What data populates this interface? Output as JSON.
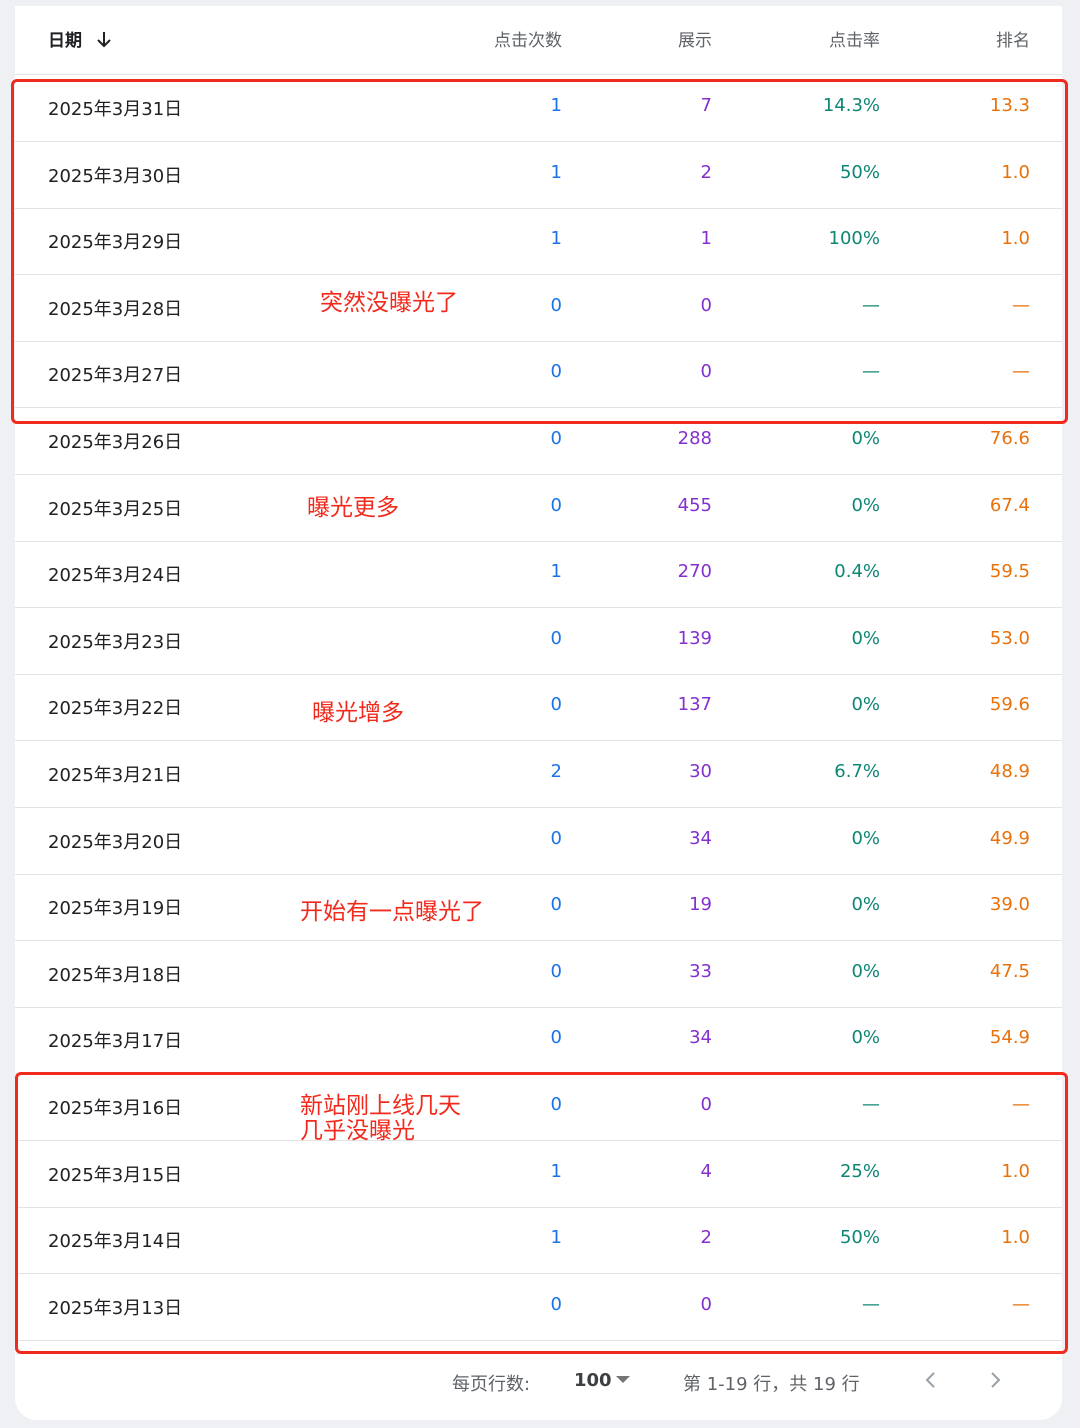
{
  "header": {
    "date": "日期",
    "clicks": "点击次数",
    "impressions": "展示",
    "ctr": "点击率",
    "position": "排名",
    "sort_icon": "arrow-down-icon"
  },
  "rows": [
    {
      "date": "2025年3月31日",
      "clicks": "1",
      "impressions": "7",
      "ctr": "14.3%",
      "position": "13.3"
    },
    {
      "date": "2025年3月30日",
      "clicks": "1",
      "impressions": "2",
      "ctr": "50%",
      "position": "1.0"
    },
    {
      "date": "2025年3月29日",
      "clicks": "1",
      "impressions": "1",
      "ctr": "100%",
      "position": "1.0"
    },
    {
      "date": "2025年3月28日",
      "clicks": "0",
      "impressions": "0",
      "ctr": "—",
      "position": "—"
    },
    {
      "date": "2025年3月27日",
      "clicks": "0",
      "impressions": "0",
      "ctr": "—",
      "position": "—"
    },
    {
      "date": "2025年3月26日",
      "clicks": "0",
      "impressions": "288",
      "ctr": "0%",
      "position": "76.6"
    },
    {
      "date": "2025年3月25日",
      "clicks": "0",
      "impressions": "455",
      "ctr": "0%",
      "position": "67.4"
    },
    {
      "date": "2025年3月24日",
      "clicks": "1",
      "impressions": "270",
      "ctr": "0.4%",
      "position": "59.5"
    },
    {
      "date": "2025年3月23日",
      "clicks": "0",
      "impressions": "139",
      "ctr": "0%",
      "position": "53.0"
    },
    {
      "date": "2025年3月22日",
      "clicks": "0",
      "impressions": "137",
      "ctr": "0%",
      "position": "59.6"
    },
    {
      "date": "2025年3月21日",
      "clicks": "2",
      "impressions": "30",
      "ctr": "6.7%",
      "position": "48.9"
    },
    {
      "date": "2025年3月20日",
      "clicks": "0",
      "impressions": "34",
      "ctr": "0%",
      "position": "49.9"
    },
    {
      "date": "2025年3月19日",
      "clicks": "0",
      "impressions": "19",
      "ctr": "0%",
      "position": "39.0"
    },
    {
      "date": "2025年3月18日",
      "clicks": "0",
      "impressions": "33",
      "ctr": "0%",
      "position": "47.5"
    },
    {
      "date": "2025年3月17日",
      "clicks": "0",
      "impressions": "34",
      "ctr": "0%",
      "position": "54.9"
    },
    {
      "date": "2025年3月16日",
      "clicks": "0",
      "impressions": "0",
      "ctr": "—",
      "position": "—"
    },
    {
      "date": "2025年3月15日",
      "clicks": "1",
      "impressions": "4",
      "ctr": "25%",
      "position": "1.0"
    },
    {
      "date": "2025年3月14日",
      "clicks": "1",
      "impressions": "2",
      "ctr": "50%",
      "position": "1.0"
    },
    {
      "date": "2025年3月13日",
      "clicks": "0",
      "impressions": "0",
      "ctr": "—",
      "position": "—"
    }
  ],
  "annotations": [
    "突然没曝光了",
    "曝光更多",
    "曝光增多",
    "开始有一点曝光了",
    "新站刚上线几天",
    "几乎没曝光"
  ],
  "footer": {
    "rows_per_page_label": "每页行数:",
    "rows_per_page_value": "100",
    "range_text": "第 1-19 行，共 19 行",
    "prev_icon": "chevron-left-icon",
    "next_icon": "chevron-right-icon"
  },
  "colors": {
    "clicks": "#1a73e8",
    "impressions": "#8430ce",
    "ctr": "#0e8674",
    "position": "#e8710a",
    "annotation": "#f02b1d"
  }
}
